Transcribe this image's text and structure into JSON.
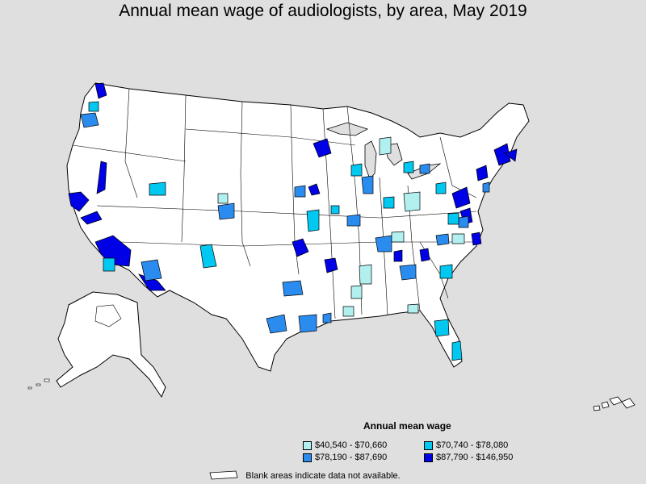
{
  "title": "Annual mean wage of audiologists, by area, May 2019",
  "legend": {
    "title": "Annual mean wage",
    "items": [
      {
        "label": "$40,540 - $70,660",
        "color": "#b2f0f0"
      },
      {
        "label": "$70,740 - $78,080",
        "color": "#00c8f0"
      },
      {
        "label": "$78,190 - $87,690",
        "color": "#2b8cf0"
      },
      {
        "label": "$87,790 - $146,950",
        "color": "#0000e6"
      }
    ]
  },
  "footnote": "Blank areas indicate data not available.",
  "colors": {
    "background": "#dfdfdf",
    "land": "#ffffff",
    "border": "#000000"
  }
}
